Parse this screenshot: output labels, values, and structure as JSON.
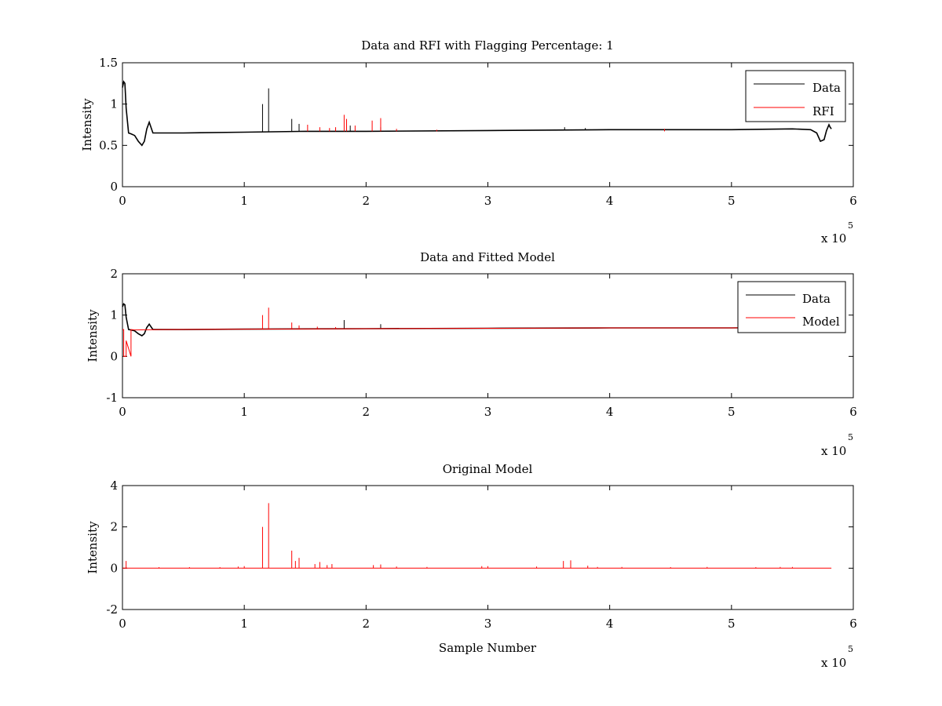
{
  "chart_data": [
    {
      "type": "line",
      "title": "Data and RFI with Flagging Percentage: 1",
      "xlabel": "",
      "ylabel": "Intensity",
      "xlim": [
        0,
        600000
      ],
      "ylim": [
        0,
        1.5
      ],
      "xticks": [
        0,
        1,
        2,
        3,
        4,
        5,
        6
      ],
      "yticks": [
        0,
        0.5,
        1,
        1.5
      ],
      "x_multiplier": "x 10",
      "x_exponent": "5",
      "legend": {
        "position": "top-right",
        "entries": [
          {
            "label": "Data",
            "color": "#000000"
          },
          {
            "label": "RFI",
            "color": "#ff0000"
          }
        ]
      },
      "series": [
        {
          "name": "Data",
          "color": "#000000",
          "x": [
            0,
            1000,
            2000,
            3000,
            5000,
            7000,
            10000,
            13000,
            16000,
            18000,
            20000,
            22000,
            25000,
            30000,
            50000,
            100000,
            150000,
            200000,
            300000,
            400000,
            500000,
            550000,
            565000,
            570000,
            573000,
            576000,
            578000,
            580000,
            581000,
            582000
          ],
          "y": [
            1.2,
            1.27,
            1.25,
            0.95,
            0.65,
            0.64,
            0.62,
            0.55,
            0.5,
            0.55,
            0.7,
            0.78,
            0.65,
            0.65,
            0.65,
            0.66,
            0.67,
            0.67,
            0.68,
            0.69,
            0.69,
            0.7,
            0.69,
            0.65,
            0.55,
            0.57,
            0.68,
            0.75,
            0.72,
            0.7
          ],
          "spikes": [
            [
              115000,
              1.0
            ],
            [
              120000,
              1.19
            ],
            [
              139000,
              0.82
            ],
            [
              145000,
              0.76
            ],
            [
              187000,
              0.74
            ],
            [
              212000,
              0.72
            ],
            [
              363000,
              0.72
            ],
            [
              380000,
              0.71
            ]
          ]
        },
        {
          "name": "RFI",
          "color": "#ff0000",
          "spikes": [
            [
              152000,
              0.75
            ],
            [
              162000,
              0.72
            ],
            [
              170000,
              0.71
            ],
            [
              175000,
              0.72
            ],
            [
              182000,
              0.87
            ],
            [
              184000,
              0.82
            ],
            [
              191000,
              0.74
            ],
            [
              205000,
              0.8
            ],
            [
              212000,
              0.83
            ],
            [
              225000,
              0.7
            ],
            [
              258000,
              0.69
            ],
            [
              445000,
              0.7
            ]
          ]
        }
      ]
    },
    {
      "type": "line",
      "title": "Data and Fitted Model",
      "xlabel": "",
      "ylabel": "Intensity",
      "xlim": [
        0,
        600000
      ],
      "ylim": [
        -1,
        2
      ],
      "xticks": [
        0,
        1,
        2,
        3,
        4,
        5,
        6
      ],
      "yticks": [
        -1,
        0,
        1,
        2
      ],
      "x_multiplier": "x 10",
      "x_exponent": "5",
      "legend": {
        "position": "top-right",
        "entries": [
          {
            "label": "Data",
            "color": "#000000"
          },
          {
            "label": "Model",
            "color": "#ff0000"
          }
        ]
      },
      "series": [
        {
          "name": "Data",
          "color": "#000000",
          "x": [
            0,
            1000,
            2000,
            3000,
            5000,
            7000,
            10000,
            13000,
            16000,
            18000,
            20000,
            22000,
            25000,
            30000,
            50000,
            100000,
            200000,
            300000,
            400000,
            500000,
            540000
          ],
          "y": [
            1.2,
            1.27,
            1.25,
            0.95,
            0.65,
            0.64,
            0.62,
            0.55,
            0.5,
            0.55,
            0.7,
            0.78,
            0.65,
            0.65,
            0.65,
            0.66,
            0.67,
            0.68,
            0.69,
            0.69,
            0.7
          ],
          "spikes": [
            [
              182000,
              0.88
            ],
            [
              212000,
              0.78
            ],
            [
              145000,
              0.74
            ]
          ]
        },
        {
          "name": "Model",
          "color": "#ff0000",
          "x": [
            0,
            1000,
            1001,
            3000,
            3001,
            7000,
            7001,
            10000,
            30000,
            100000,
            200000,
            300000,
            400000,
            500000,
            540000
          ],
          "y": [
            0.65,
            0.65,
            0,
            0,
            0.38,
            0.0,
            0.65,
            0.64,
            0.65,
            0.66,
            0.67,
            0.68,
            0.69,
            0.69,
            0.7
          ],
          "spikes": [
            [
              115000,
              1.0
            ],
            [
              120000,
              1.18
            ],
            [
              139000,
              0.82
            ],
            [
              145000,
              0.75
            ],
            [
              160000,
              0.72
            ],
            [
              175000,
              0.71
            ]
          ]
        }
      ]
    },
    {
      "type": "line",
      "title": "Original Model",
      "xlabel": "Sample Number",
      "ylabel": "Intensity",
      "xlim": [
        0,
        600000
      ],
      "ylim": [
        -2,
        4
      ],
      "xticks": [
        0,
        1,
        2,
        3,
        4,
        5,
        6
      ],
      "yticks": [
        -2,
        0,
        2,
        4
      ],
      "x_multiplier": "x 10",
      "x_exponent": "5",
      "series": [
        {
          "name": "Original Model",
          "color": "#ff0000",
          "x": [
            0,
            582000
          ],
          "y": [
            0,
            0
          ],
          "spikes": [
            [
              3000,
              0.35
            ],
            [
              115000,
              2.0
            ],
            [
              120000,
              3.15
            ],
            [
              139000,
              0.85
            ],
            [
              142000,
              0.35
            ],
            [
              145000,
              0.5
            ],
            [
              158000,
              0.2
            ],
            [
              162000,
              0.3
            ],
            [
              168000,
              0.15
            ],
            [
              172000,
              0.2
            ],
            [
              206000,
              0.15
            ],
            [
              212000,
              0.18
            ],
            [
              362000,
              0.35
            ],
            [
              368000,
              0.38
            ],
            [
              382000,
              0.12
            ],
            [
              30000,
              0.05
            ],
            [
              55000,
              0.05
            ],
            [
              80000,
              0.05
            ],
            [
              95000,
              0.08
            ],
            [
              100000,
              0.1
            ],
            [
              225000,
              0.08
            ],
            [
              250000,
              0.06
            ],
            [
              295000,
              0.1
            ],
            [
              300000,
              0.1
            ],
            [
              340000,
              0.08
            ],
            [
              390000,
              0.06
            ],
            [
              410000,
              0.06
            ],
            [
              450000,
              0.05
            ],
            [
              480000,
              0.06
            ],
            [
              520000,
              0.05
            ],
            [
              540000,
              0.06
            ],
            [
              550000,
              0.06
            ]
          ]
        }
      ]
    }
  ]
}
